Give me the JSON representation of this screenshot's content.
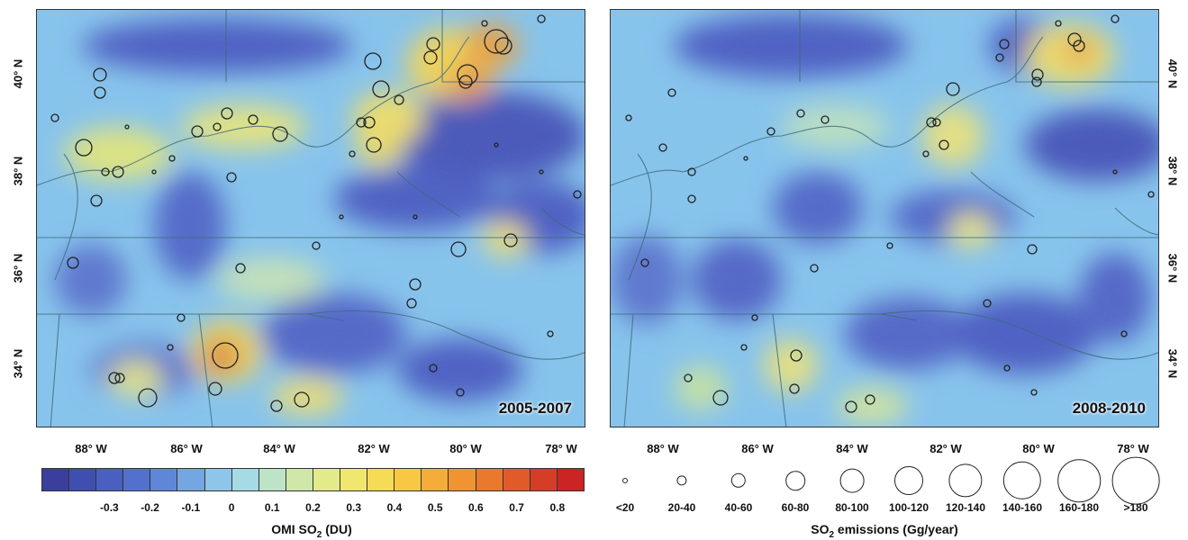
{
  "panels": [
    {
      "period": "2005-2007"
    },
    {
      "period": "2008-2010"
    }
  ],
  "lon_ticks": [
    "88° W",
    "86° W",
    "84° W",
    "82° W",
    "80° W",
    "78° W"
  ],
  "lat_ticks": [
    "40° N",
    "38° N",
    "36° N",
    "34° N"
  ],
  "colorbar": {
    "title_main": "OMI SO",
    "title_sub": "2",
    "title_unit": " (DU)",
    "ticks": [
      "-0.3",
      "-0.2",
      "-0.1",
      "0",
      "0.1",
      "0.2",
      "0.3",
      "0.4",
      "0.5",
      "0.6",
      "0.7",
      "0.8"
    ],
    "colors": [
      "#3a3f9e",
      "#3f4fb0",
      "#4a5fc0",
      "#5470cf",
      "#5f86d8",
      "#74a6e2",
      "#8ec6ea",
      "#a6dbe6",
      "#bde3c8",
      "#cfe7a8",
      "#e2ea8a",
      "#f0e76e",
      "#f6dc55",
      "#f8c844",
      "#f5ad3a",
      "#f09432",
      "#e9792d",
      "#e15b2a",
      "#d63d27",
      "#cc2424"
    ]
  },
  "emissions_legend": {
    "title_main": "SO",
    "title_sub": "2",
    "title_unit": " emissions (Gg/year)",
    "classes": [
      "<20",
      "20-40",
      "40-60",
      "60-80",
      "80-100",
      "100-120",
      "120-140",
      "140-160",
      "160-180",
      ">180"
    ]
  }
}
